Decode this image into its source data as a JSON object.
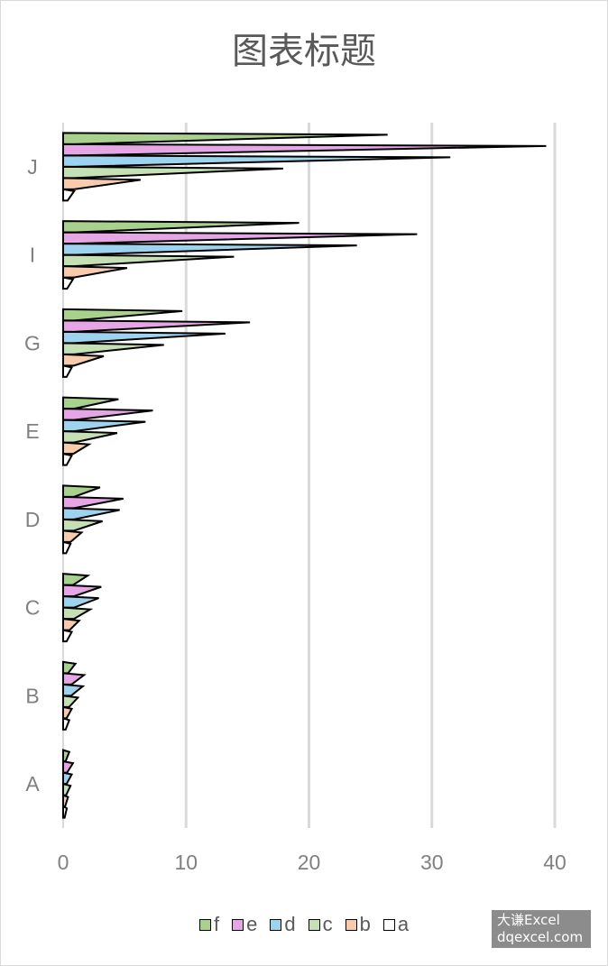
{
  "chart_data": {
    "type": "bar",
    "orientation": "horizontal",
    "title": "图表标题",
    "categories": [
      "A",
      "B",
      "C",
      "D",
      "E",
      "G",
      "I",
      "J"
    ],
    "series": [
      {
        "name": "f",
        "color": "#a9d18e",
        "values": [
          0.5,
          1,
          2,
          3,
          4.5,
          9.7,
          19.2,
          26.4
        ]
      },
      {
        "name": "e",
        "color": "#e6a6e6",
        "values": [
          0.8,
          1.7,
          3.1,
          4.9,
          7.3,
          15.2,
          28.8,
          39.3
        ]
      },
      {
        "name": "d",
        "color": "#9dd3ef",
        "values": [
          0.7,
          1.6,
          2.9,
          4.6,
          6.7,
          13.2,
          23.9,
          31.5
        ]
      },
      {
        "name": "c",
        "color": "#c5e0b4",
        "values": [
          0.6,
          1.2,
          2.2,
          3.2,
          4.4,
          8.2,
          13.9,
          17.9
        ]
      },
      {
        "name": "b",
        "color": "#f8cbad",
        "values": [
          0.4,
          0.7,
          1.3,
          1.5,
          2.1,
          3.3,
          5.2,
          6.3
        ]
      },
      {
        "name": "a",
        "color": "#ffffff",
        "values": [
          0.3,
          0.5,
          0.7,
          0.6,
          0.7,
          0.7,
          0.8,
          0.9
        ]
      }
    ],
    "x_ticks": [
      "0",
      "10",
      "20",
      "30",
      "40"
    ],
    "xlim": [
      0,
      40
    ],
    "grid": true,
    "legend_position": "bottom"
  },
  "watermark": {
    "line1": "大谦Excel",
    "line2": "dqexcel.com"
  }
}
